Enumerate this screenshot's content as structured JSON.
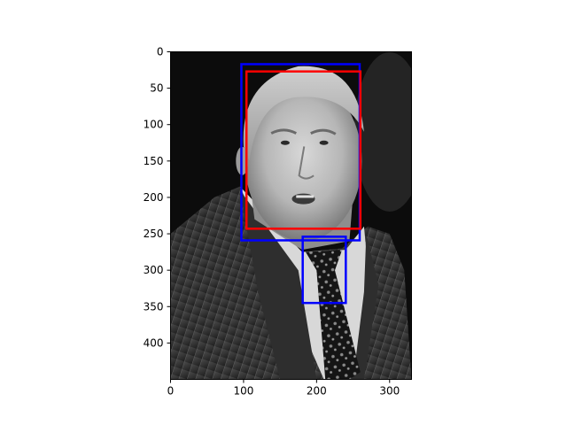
{
  "chart_data": {
    "type": "image",
    "title": "",
    "xlabel": "",
    "ylabel": "",
    "image": {
      "description": "grayscale photograph",
      "width": 330,
      "height": 450
    },
    "xlim": [
      0,
      330
    ],
    "ylim": [
      450,
      0
    ],
    "y_inverted": true,
    "x_ticks": [
      0,
      100,
      200,
      300
    ],
    "y_ticks": [
      0,
      50,
      100,
      150,
      200,
      250,
      300,
      350,
      400
    ],
    "rectangles": [
      {
        "label": "blue box",
        "color": "#0000ff",
        "x": 97,
        "y": 17,
        "width": 162,
        "height": 242
      },
      {
        "label": "red box",
        "color": "#ff0000",
        "x": 104,
        "y": 27,
        "width": 156,
        "height": 216
      },
      {
        "label": "blue box",
        "color": "#0000ff",
        "x": 181,
        "y": 254,
        "width": 59,
        "height": 91
      }
    ],
    "grid": false
  }
}
